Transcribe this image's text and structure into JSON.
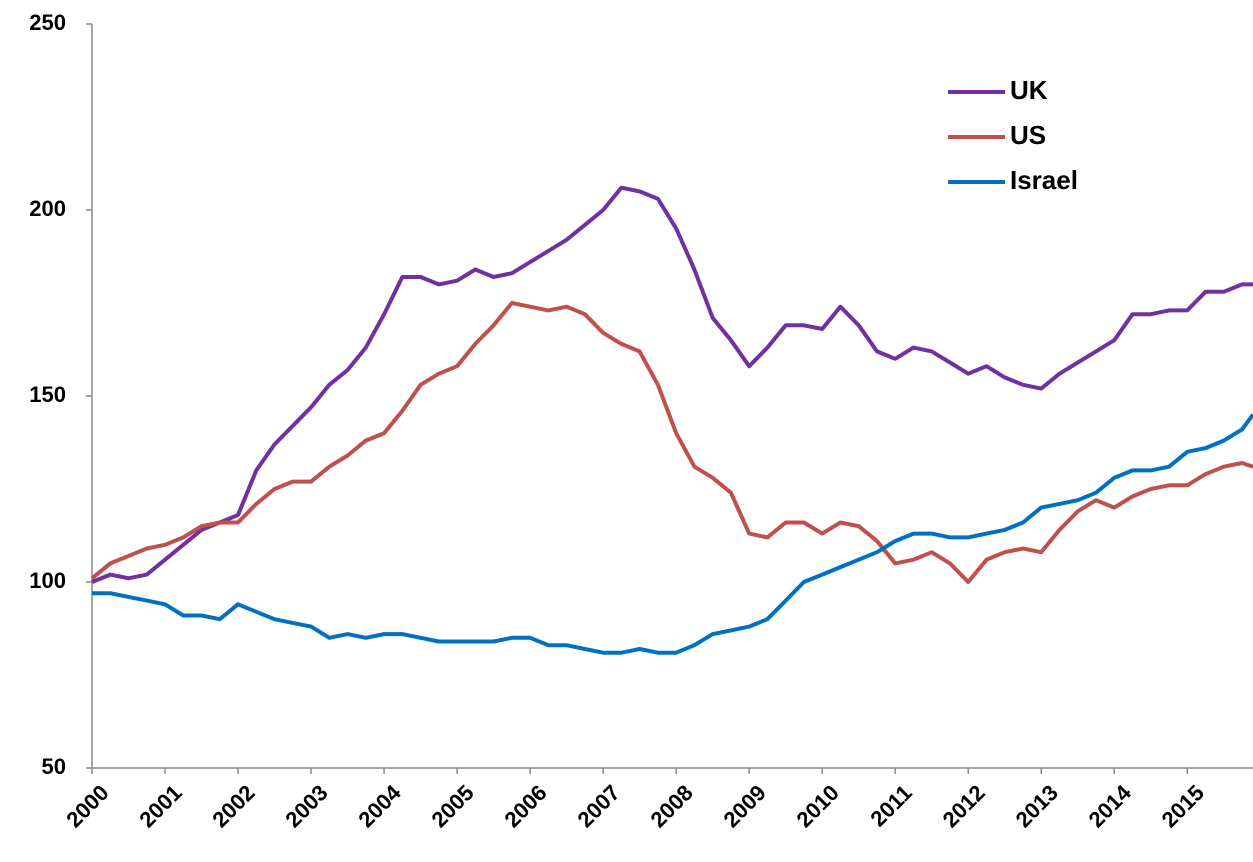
{
  "chart_data": {
    "type": "line",
    "x": [
      2000,
      2000.25,
      2000.5,
      2000.75,
      2001,
      2001.25,
      2001.5,
      2001.75,
      2002,
      2002.25,
      2002.5,
      2002.75,
      2003,
      2003.25,
      2003.5,
      2003.75,
      2004,
      2004.25,
      2004.5,
      2004.75,
      2005,
      2005.25,
      2005.5,
      2005.75,
      2006,
      2006.25,
      2006.5,
      2006.75,
      2007,
      2007.25,
      2007.5,
      2007.75,
      2008,
      2008.25,
      2008.5,
      2008.75,
      2009,
      2009.25,
      2009.5,
      2009.75,
      2010,
      2010.25,
      2010.5,
      2010.75,
      2011,
      2011.25,
      2011.5,
      2011.75,
      2012,
      2012.25,
      2012.5,
      2012.75,
      2013,
      2013.25,
      2013.5,
      2013.75,
      2014,
      2014.25,
      2014.5,
      2014.75,
      2015,
      2015.25,
      2015.5,
      2015.75,
      2015.9
    ],
    "series": [
      {
        "name": "UK",
        "color": "#7030a0",
        "values": [
          100,
          102,
          101,
          102,
          106,
          110,
          114,
          116,
          118,
          130,
          137,
          142,
          147,
          153,
          157,
          163,
          172,
          182,
          182,
          180,
          181,
          184,
          182,
          183,
          186,
          189,
          192,
          196,
          200,
          206,
          205,
          203,
          195,
          184,
          171,
          165,
          158,
          163,
          169,
          169,
          168,
          174,
          169,
          162,
          160,
          163,
          162,
          159,
          156,
          158,
          155,
          153,
          152,
          156,
          159,
          162,
          165,
          172,
          172,
          173,
          173,
          178,
          178,
          180,
          180
        ]
      },
      {
        "name": "US",
        "color": "#c0504d",
        "values": [
          101,
          105,
          107,
          109,
          110,
          112,
          115,
          116,
          116,
          121,
          125,
          127,
          127,
          131,
          134,
          138,
          140,
          146,
          153,
          156,
          158,
          164,
          169,
          175,
          174,
          173,
          174,
          172,
          167,
          164,
          162,
          153,
          140,
          131,
          128,
          124,
          113,
          112,
          116,
          116,
          113,
          116,
          115,
          111,
          105,
          106,
          108,
          105,
          100,
          106,
          108,
          109,
          108,
          114,
          119,
          122,
          120,
          123,
          125,
          126,
          126,
          129,
          131,
          132,
          131
        ]
      },
      {
        "name": "Israel",
        "color": "#0070c0",
        "values": [
          97,
          97,
          96,
          95,
          94,
          91,
          91,
          90,
          94,
          92,
          90,
          89,
          88,
          85,
          86,
          85,
          86,
          86,
          85,
          84,
          84,
          84,
          84,
          85,
          85,
          83,
          83,
          82,
          81,
          81,
          82,
          81,
          81,
          83,
          86,
          87,
          88,
          90,
          95,
          100,
          102,
          104,
          106,
          108,
          111,
          113,
          113,
          112,
          112,
          113,
          114,
          116,
          120,
          121,
          122,
          124,
          128,
          130,
          130,
          131,
          135,
          136,
          138,
          141,
          145
        ]
      }
    ],
    "xlim": [
      2000,
      2015.9
    ],
    "xticks": [
      2000,
      2001,
      2002,
      2003,
      2004,
      2005,
      2006,
      2007,
      2008,
      2009,
      2010,
      2011,
      2012,
      2013,
      2014,
      2015
    ],
    "ylim": [
      50,
      250
    ],
    "yticks": [
      50,
      100,
      150,
      200,
      250
    ],
    "grid": false,
    "legend": "upper right"
  }
}
